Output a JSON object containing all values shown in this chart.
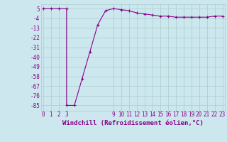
{
  "x": [
    0,
    1,
    2,
    3,
    3,
    4,
    5,
    6,
    7,
    8,
    9,
    10,
    11,
    12,
    13,
    14,
    15,
    16,
    17,
    18,
    19,
    20,
    21,
    22,
    23
  ],
  "y": [
    5,
    5,
    5,
    5,
    -85,
    -85,
    -60,
    -35,
    -10,
    3,
    5,
    4,
    3,
    1,
    0,
    -1,
    -2,
    -2,
    -3,
    -3,
    -3,
    -3,
    -3,
    -2,
    -2
  ],
  "yticks": [
    5,
    -4,
    -13,
    -22,
    -31,
    -40,
    -49,
    -58,
    -67,
    -76,
    -85
  ],
  "xticks": [
    0,
    1,
    2,
    3,
    9,
    10,
    11,
    12,
    13,
    14,
    15,
    16,
    17,
    18,
    19,
    20,
    21,
    22,
    23
  ],
  "xlim": [
    -0.3,
    23.3
  ],
  "ylim": [
    -90,
    9
  ],
  "line_color": "#880088",
  "marker": "+",
  "marker_size": 3.5,
  "marker_edge_width": 0.8,
  "bg_color": "#cce8ee",
  "grid_color": "#aacccc",
  "xlabel": "Windchill (Refroidissement éolien,°C)",
  "xlabel_fontsize": 6.5,
  "tick_fontsize": 5.5,
  "line_width": 0.8,
  "fig_width": 3.2,
  "fig_height": 2.0,
  "dpi": 100
}
